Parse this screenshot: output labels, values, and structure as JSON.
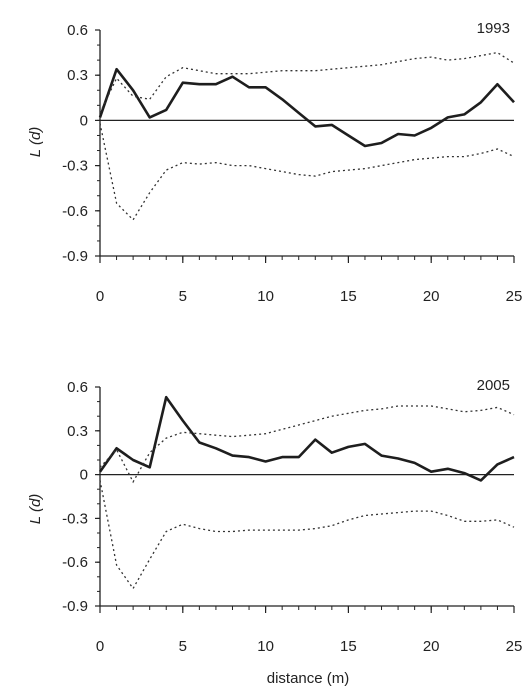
{
  "chart_data": [
    {
      "type": "line",
      "annotation": "1993",
      "ylabel": "L (d)",
      "xlabel": "",
      "xlim": [
        0,
        25
      ],
      "ylim": [
        -0.9,
        0.6
      ],
      "x_ticks": [
        "0",
        "5",
        "10",
        "15",
        "20",
        "25"
      ],
      "y_ticks": [
        "0.6",
        "0.3",
        "0",
        "-0.3",
        "-0.6",
        "-0.9"
      ],
      "x": [
        0,
        1,
        2,
        3,
        4,
        5,
        6,
        7,
        8,
        9,
        10,
        11,
        12,
        13,
        14,
        15,
        16,
        17,
        18,
        19,
        20,
        21,
        22,
        23,
        24,
        25
      ],
      "series": [
        {
          "role": "observed",
          "style": "solid",
          "values": [
            0.02,
            0.34,
            0.2,
            0.02,
            0.07,
            0.25,
            0.24,
            0.24,
            0.29,
            0.22,
            0.22,
            0.14,
            0.05,
            -0.04,
            -0.03,
            -0.1,
            -0.17,
            -0.15,
            -0.09,
            -0.1,
            -0.05,
            0.02,
            0.04,
            0.12,
            0.24,
            0.12
          ]
        },
        {
          "role": "upper-envelope",
          "style": "dotted",
          "values": [
            0.05,
            0.28,
            0.16,
            0.14,
            0.29,
            0.35,
            0.33,
            0.31,
            0.31,
            0.31,
            0.32,
            0.33,
            0.33,
            0.33,
            0.34,
            0.35,
            0.36,
            0.37,
            0.39,
            0.41,
            0.42,
            0.4,
            0.41,
            0.43,
            0.45,
            0.38
          ]
        },
        {
          "role": "lower-envelope",
          "style": "dotted",
          "values": [
            -0.02,
            -0.55,
            -0.66,
            -0.48,
            -0.33,
            -0.28,
            -0.29,
            -0.28,
            -0.3,
            -0.3,
            -0.32,
            -0.34,
            -0.36,
            -0.37,
            -0.34,
            -0.33,
            -0.32,
            -0.3,
            -0.28,
            -0.26,
            -0.25,
            -0.24,
            -0.24,
            -0.22,
            -0.19,
            -0.24
          ]
        }
      ]
    },
    {
      "type": "line",
      "annotation": "2005",
      "ylabel": "L (d)",
      "xlabel": "distance (m)",
      "xlim": [
        0,
        25
      ],
      "ylim": [
        -0.9,
        0.6
      ],
      "x_ticks": [
        "0",
        "5",
        "10",
        "15",
        "20",
        "25"
      ],
      "y_ticks": [
        "0.6",
        "0.3",
        "0",
        "-0.3",
        "-0.6",
        "-0.9"
      ],
      "x": [
        0,
        1,
        2,
        3,
        4,
        5,
        6,
        7,
        8,
        9,
        10,
        11,
        12,
        13,
        14,
        15,
        16,
        17,
        18,
        19,
        20,
        21,
        22,
        23,
        24,
        25
      ],
      "series": [
        {
          "role": "observed",
          "style": "solid",
          "values": [
            0.02,
            0.18,
            0.1,
            0.05,
            0.53,
            0.37,
            0.22,
            0.18,
            0.13,
            0.12,
            0.09,
            0.12,
            0.12,
            0.24,
            0.15,
            0.19,
            0.21,
            0.13,
            0.11,
            0.08,
            0.02,
            0.04,
            0.01,
            -0.04,
            0.07,
            0.12
          ]
        },
        {
          "role": "upper-envelope",
          "style": "dotted",
          "values": [
            0.05,
            0.17,
            -0.05,
            0.15,
            0.25,
            0.29,
            0.28,
            0.27,
            0.26,
            0.27,
            0.28,
            0.31,
            0.34,
            0.37,
            0.4,
            0.42,
            0.44,
            0.45,
            0.47,
            0.47,
            0.47,
            0.45,
            0.43,
            0.44,
            0.46,
            0.41
          ]
        },
        {
          "role": "lower-envelope",
          "style": "dotted",
          "values": [
            -0.04,
            -0.62,
            -0.78,
            -0.58,
            -0.39,
            -0.34,
            -0.37,
            -0.39,
            -0.39,
            -0.38,
            -0.38,
            -0.38,
            -0.38,
            -0.37,
            -0.35,
            -0.31,
            -0.28,
            -0.27,
            -0.26,
            -0.25,
            -0.25,
            -0.28,
            -0.32,
            -0.32,
            -0.31,
            -0.36
          ]
        }
      ]
    }
  ]
}
